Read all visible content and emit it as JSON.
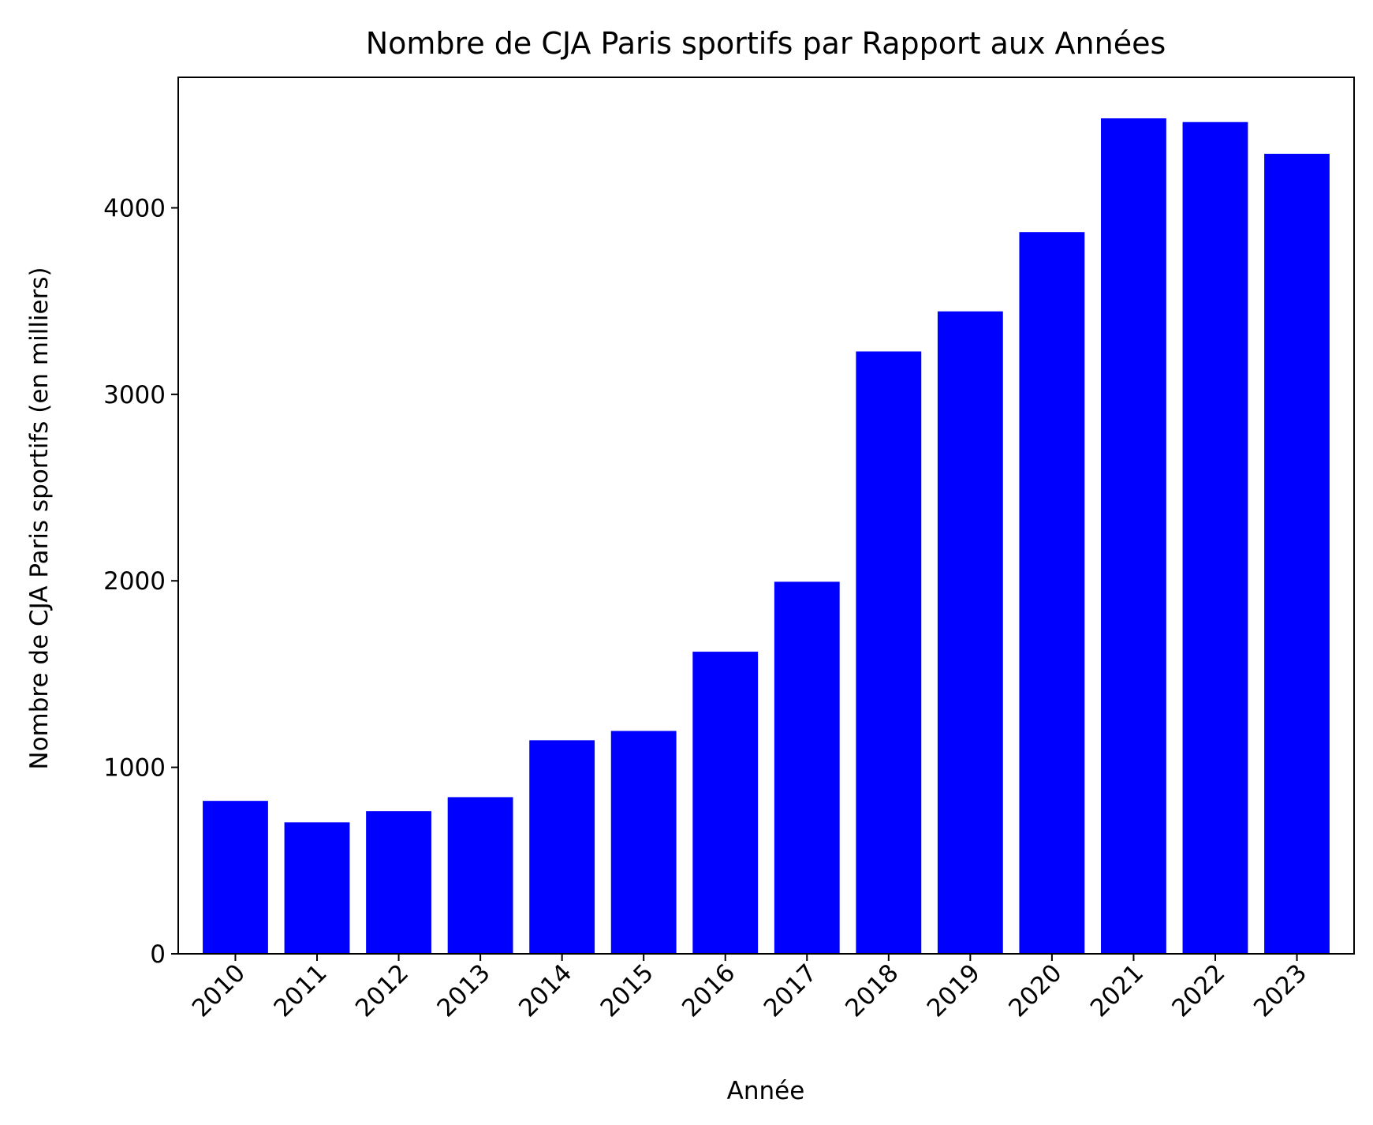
{
  "chart_data": {
    "type": "bar",
    "title": "Nombre de CJA Paris sportifs par Rapport aux Années",
    "xlabel": "Année",
    "ylabel": "Nombre de CJA Paris sportifs (en milliers)",
    "categories": [
      "2010",
      "2011",
      "2012",
      "2013",
      "2014",
      "2015",
      "2016",
      "2017",
      "2018",
      "2019",
      "2020",
      "2021",
      "2022",
      "2023"
    ],
    "values": [
      820,
      705,
      765,
      840,
      1145,
      1195,
      1620,
      1995,
      3230,
      3445,
      3870,
      4480,
      4460,
      4290
    ],
    "ylim": [
      0,
      4700
    ],
    "yticks": [
      0,
      1000,
      2000,
      3000,
      4000
    ],
    "ytick_labels": [
      "0",
      "1000",
      "2000",
      "3000",
      "4000"
    ],
    "bar_color": "#0000ff",
    "grid": false,
    "legend": null
  }
}
